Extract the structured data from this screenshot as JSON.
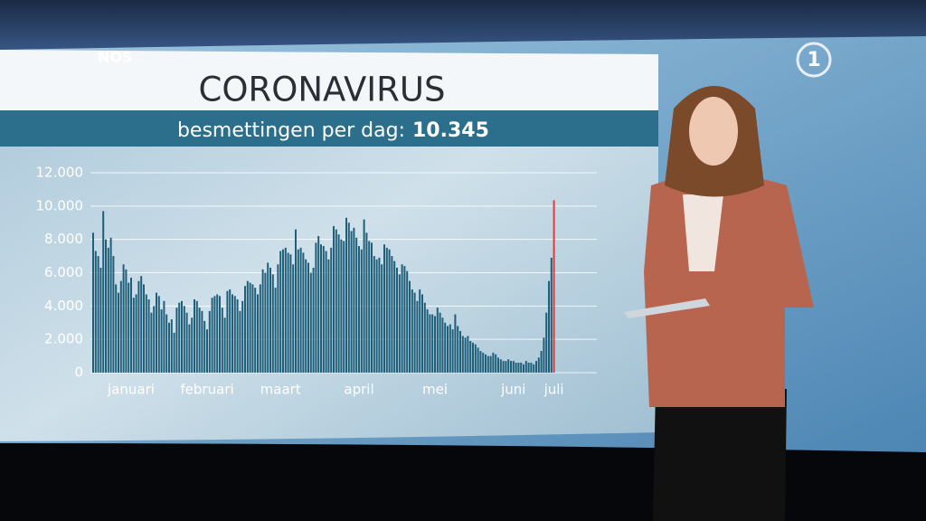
{
  "brand": "NOS",
  "channel": "1",
  "chart_data": {
    "type": "bar",
    "title": "CORONAVIRUS",
    "subtitle": "besmettingen per dag:",
    "subtitle_value": "10.345",
    "color": "#1f5f7a",
    "last_bar_color": "#e53a3a",
    "grid": true,
    "ylim": [
      0,
      12000
    ],
    "yticks": [
      0,
      {
        "value": 2000,
        "label": "2.000"
      },
      {
        "value": 4000,
        "label": "4.000"
      },
      {
        "value": 6000,
        "label": "6.000"
      },
      {
        "value": 8000,
        "label": "8.000"
      },
      {
        "value": 10000,
        "label": "10.000"
      },
      {
        "value": 12000,
        "label": "12.000"
      }
    ],
    "categories": [
      null,
      null,
      null,
      null,
      null,
      null,
      null,
      null,
      null,
      null,
      null,
      null,
      null,
      null,
      null,
      "januari",
      null,
      null,
      null,
      null,
      null,
      null,
      null,
      null,
      null,
      null,
      null,
      null,
      null,
      null,
      null,
      null,
      null,
      null,
      null,
      null,
      null,
      null,
      null,
      null,
      null,
      null,
      null,
      null,
      null,
      "februari",
      null,
      null,
      null,
      null,
      null,
      null,
      null,
      null,
      null,
      null,
      null,
      null,
      null,
      null,
      null,
      null,
      null,
      null,
      null,
      null,
      null,
      null,
      null,
      null,
      null,
      null,
      null,
      null,
      "maart",
      null,
      null,
      null,
      null,
      null,
      null,
      null,
      null,
      null,
      null,
      null,
      null,
      null,
      null,
      null,
      null,
      null,
      null,
      null,
      null,
      null,
      null,
      null,
      null,
      null,
      null,
      null,
      null,
      null,
      null,
      "april",
      null,
      null,
      null,
      null,
      null,
      null,
      null,
      null,
      null,
      null,
      null,
      null,
      null,
      null,
      null,
      null,
      null,
      null,
      null,
      null,
      null,
      null,
      null,
      null,
      null,
      null,
      null,
      null,
      null,
      "mei",
      null,
      null,
      null,
      null,
      null,
      null,
      null,
      null,
      null,
      null,
      null,
      null,
      null,
      null,
      null,
      null,
      null,
      null,
      null,
      null,
      null,
      null,
      null,
      null,
      null,
      null,
      null,
      null,
      null,
      null,
      "juni",
      null,
      null,
      null,
      null,
      null,
      null,
      null,
      null,
      null,
      null,
      null,
      null,
      null,
      null,
      null,
      "juli"
    ],
    "values": [
      8400,
      7300,
      7000,
      6300,
      9700,
      8000,
      7500,
      8100,
      7000,
      5300,
      4800,
      5500,
      6500,
      6200,
      5400,
      5700,
      4500,
      4700,
      5500,
      5800,
      5300,
      4700,
      4400,
      3600,
      4000,
      4800,
      4600,
      3800,
      4300,
      3500,
      3000,
      3200,
      2400,
      3900,
      4200,
      4300,
      4000,
      3600,
      2900,
      3300,
      4400,
      4300,
      3900,
      3700,
      3100,
      2600,
      3700,
      4500,
      4600,
      4700,
      4600,
      3900,
      3300,
      4900,
      5000,
      4700,
      4600,
      4400,
      3700,
      4300,
      5200,
      5500,
      5400,
      5300,
      5100,
      4700,
      5300,
      6200,
      6000,
      6600,
      6300,
      5900,
      5100,
      6500,
      7300,
      7400,
      7500,
      7200,
      7100,
      6500,
      8600,
      7400,
      7500,
      7200,
      6800,
      6600,
      6000,
      6300,
      7800,
      8200,
      7700,
      7600,
      7300,
      6800,
      7500,
      8800,
      8600,
      8300,
      8000,
      7900,
      9300,
      9000,
      8500,
      8700,
      8100,
      7600,
      7400,
      9200,
      8400,
      7900,
      7800,
      7000,
      6800,
      6900,
      6500,
      7700,
      7500,
      7400,
      7000,
      6700,
      6300,
      5900,
      6500,
      6400,
      6100,
      5500,
      5000,
      4800,
      4300,
      5000,
      4700,
      4200,
      3800,
      3500,
      3500,
      3400,
      3900,
      3600,
      3300,
      3000,
      2800,
      2900,
      2600,
      3500,
      2800,
      2500,
      2200,
      2100,
      2200,
      1900,
      1800,
      1700,
      1500,
      1300,
      1200,
      1100,
      1000,
      1000,
      1200,
      1100,
      900,
      800,
      700,
      700,
      800,
      700,
      700,
      600,
      600,
      600,
      500,
      700,
      600,
      600,
      500,
      700,
      900,
      1300,
      2100,
      3600,
      5500,
      6900,
      10345
    ]
  }
}
